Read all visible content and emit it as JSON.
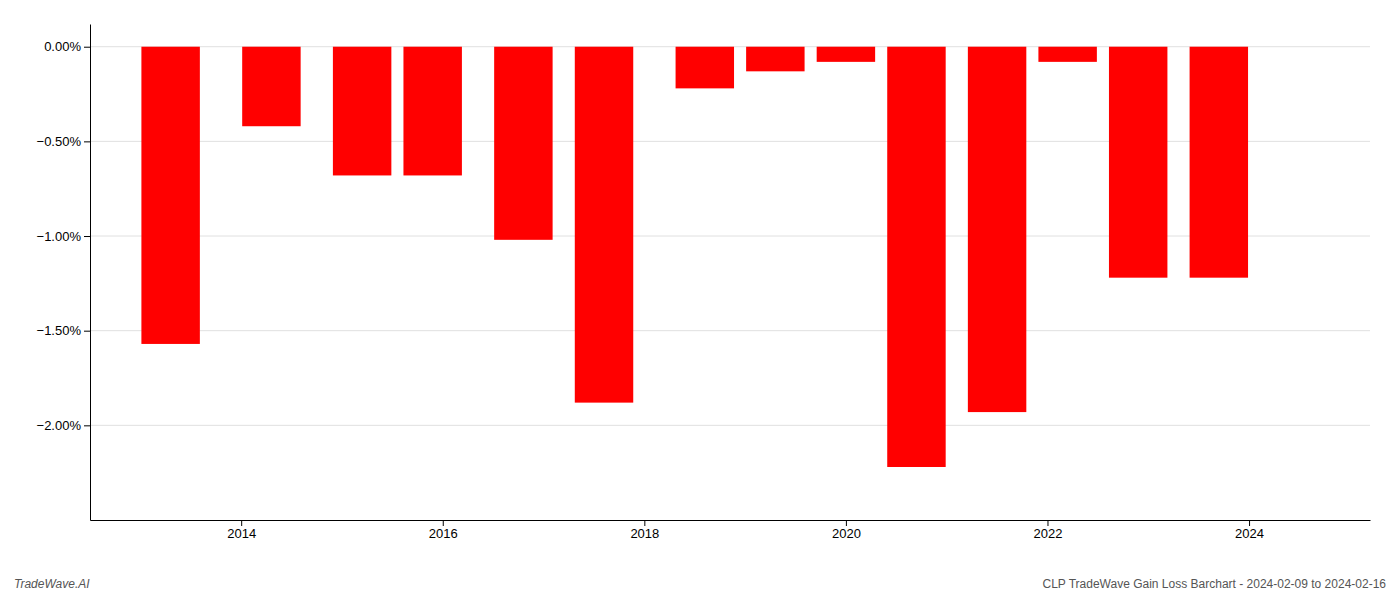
{
  "chart_data": {
    "type": "bar",
    "x": [
      2013.3,
      2014.3,
      2015.2,
      2015.9,
      2016.8,
      2017.6,
      2018.6,
      2019.3,
      2020.0,
      2020.7,
      2021.5,
      2022.2,
      2022.9,
      2023.7
    ],
    "values": [
      -1.57,
      -0.42,
      -0.68,
      -0.68,
      -1.02,
      -1.88,
      -0.22,
      -0.13,
      -0.08,
      -2.22,
      -1.93,
      -0.08,
      -1.22,
      -1.22
    ],
    "color": "#ff0000",
    "xlim": [
      2012.5,
      2025.2
    ],
    "xticks": [
      2014,
      2016,
      2018,
      2020,
      2022,
      2024
    ],
    "ylim": [
      -2.5,
      0.12
    ],
    "yticks": [
      {
        "value": 0.0,
        "label": "0.00%"
      },
      {
        "value": -0.5,
        "label": "−0.50%"
      },
      {
        "value": -1.0,
        "label": "−1.00%"
      },
      {
        "value": -1.5,
        "label": "−1.50%"
      },
      {
        "value": -2.0,
        "label": "−2.00%"
      }
    ],
    "grid": true,
    "annotations": [
      "TradeWave.AI",
      "CLP TradeWave Gain Loss Barchart - 2024-02-09 to 2024-02-16"
    ]
  }
}
